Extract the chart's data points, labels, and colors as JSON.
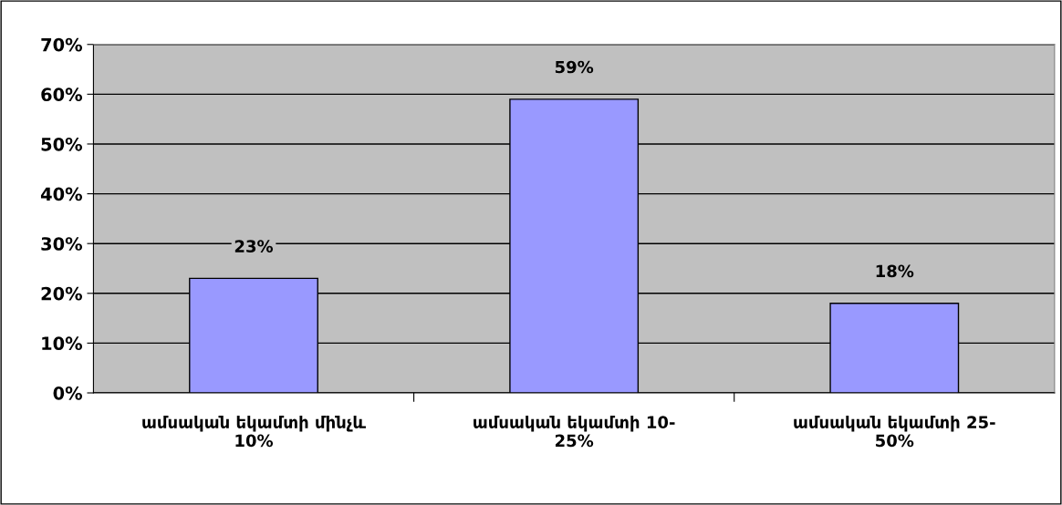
{
  "chart_data": {
    "type": "bar",
    "categories": [
      "ամսական եկամտի մինչև\n10%",
      "ամսական եկամտի 10-\n25%",
      "ամսական եկամտի 25-\n50%"
    ],
    "values": [
      23,
      59,
      18
    ],
    "color": "#9999ff",
    "value_labels": [
      "23%",
      "59%",
      "18%"
    ],
    "ylim": [
      0,
      70
    ],
    "yticks": [
      {
        "value": 0,
        "label": "0%"
      },
      {
        "value": 10,
        "label": "10%"
      },
      {
        "value": 20,
        "label": "20%"
      },
      {
        "value": 30,
        "label": "30%"
      },
      {
        "value": 40,
        "label": "40%"
      },
      {
        "value": 50,
        "label": "50%"
      },
      {
        "value": 60,
        "label": "60%"
      },
      {
        "value": 70,
        "label": "70%"
      }
    ],
    "grid": "y",
    "legend": false
  }
}
